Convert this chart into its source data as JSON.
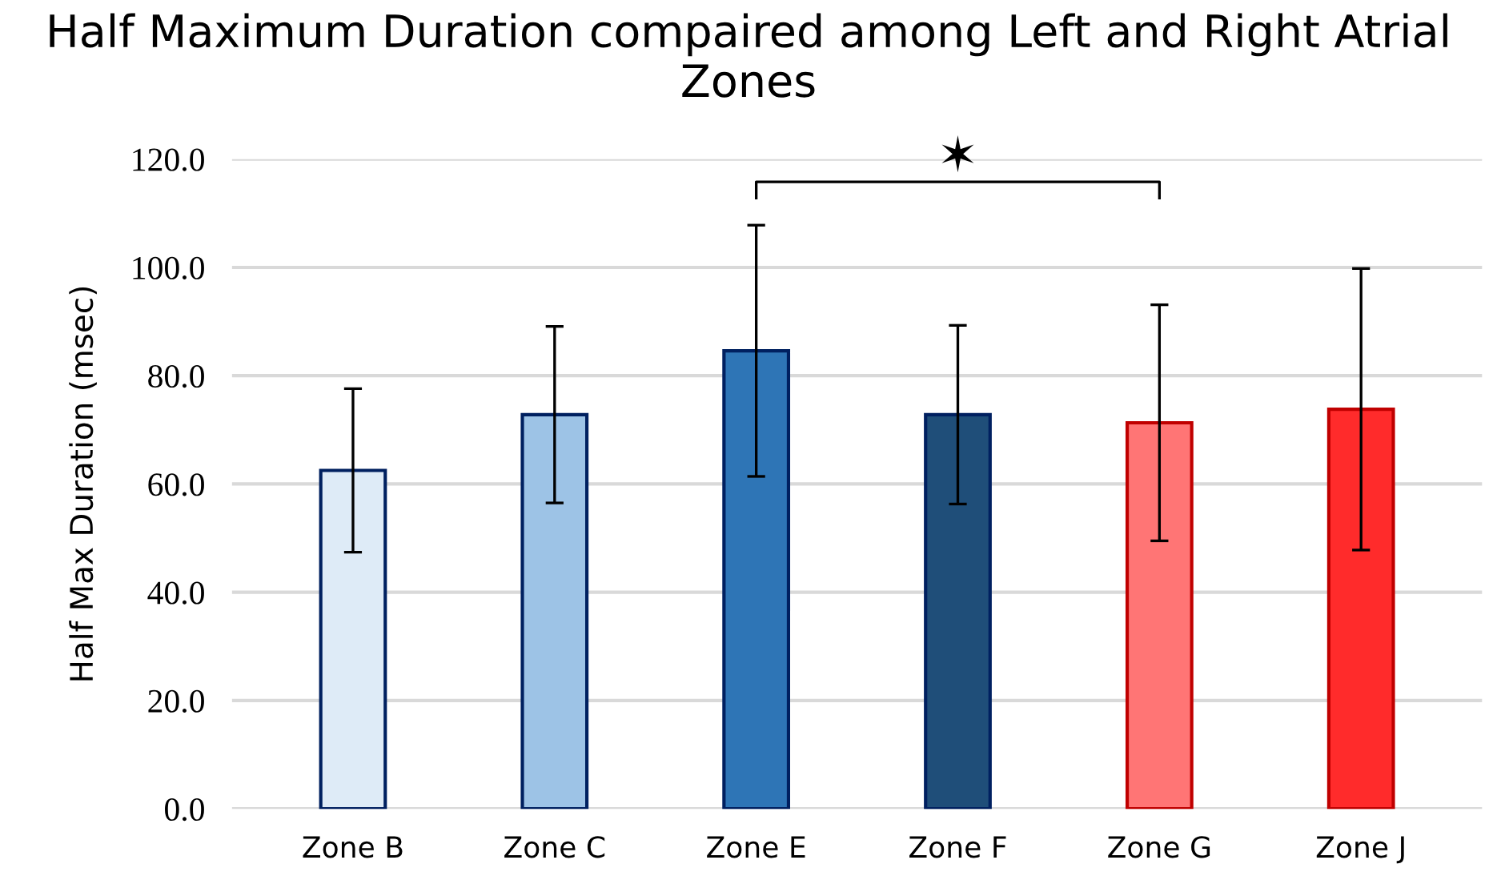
{
  "chart_data": {
    "type": "bar",
    "title": "Half Maximum Duration compaired among Left and Right Atrial Zones",
    "ylabel": "Half Max Duration (msec)",
    "categories": [
      "Zone B",
      "Zone C",
      "Zone E",
      "Zone F",
      "Zone G",
      "Zone J"
    ],
    "values": [
      62.5,
      72.8,
      84.6,
      72.8,
      71.3,
      73.8
    ],
    "errors": [
      15.1,
      16.3,
      23.2,
      16.5,
      21.8,
      26.0
    ],
    "colors": [
      "#deebf7",
      "#9dc3e6",
      "#2e75b6",
      "#1f4e79",
      "#ff7575",
      "#ff2b2b"
    ],
    "ylim": [
      0,
      120
    ],
    "yticks": [
      {
        "value": 0,
        "label": "0.0"
      },
      {
        "value": 20,
        "label": "20.0"
      },
      {
        "value": 40,
        "label": "40.0"
      },
      {
        "value": 60,
        "label": "60.0"
      },
      {
        "value": 80,
        "label": "80.0"
      },
      {
        "value": 100,
        "label": "100.0"
      },
      {
        "value": 120,
        "label": "120.0"
      }
    ],
    "grid": "y",
    "annotations": [
      "✶"
    ]
  }
}
